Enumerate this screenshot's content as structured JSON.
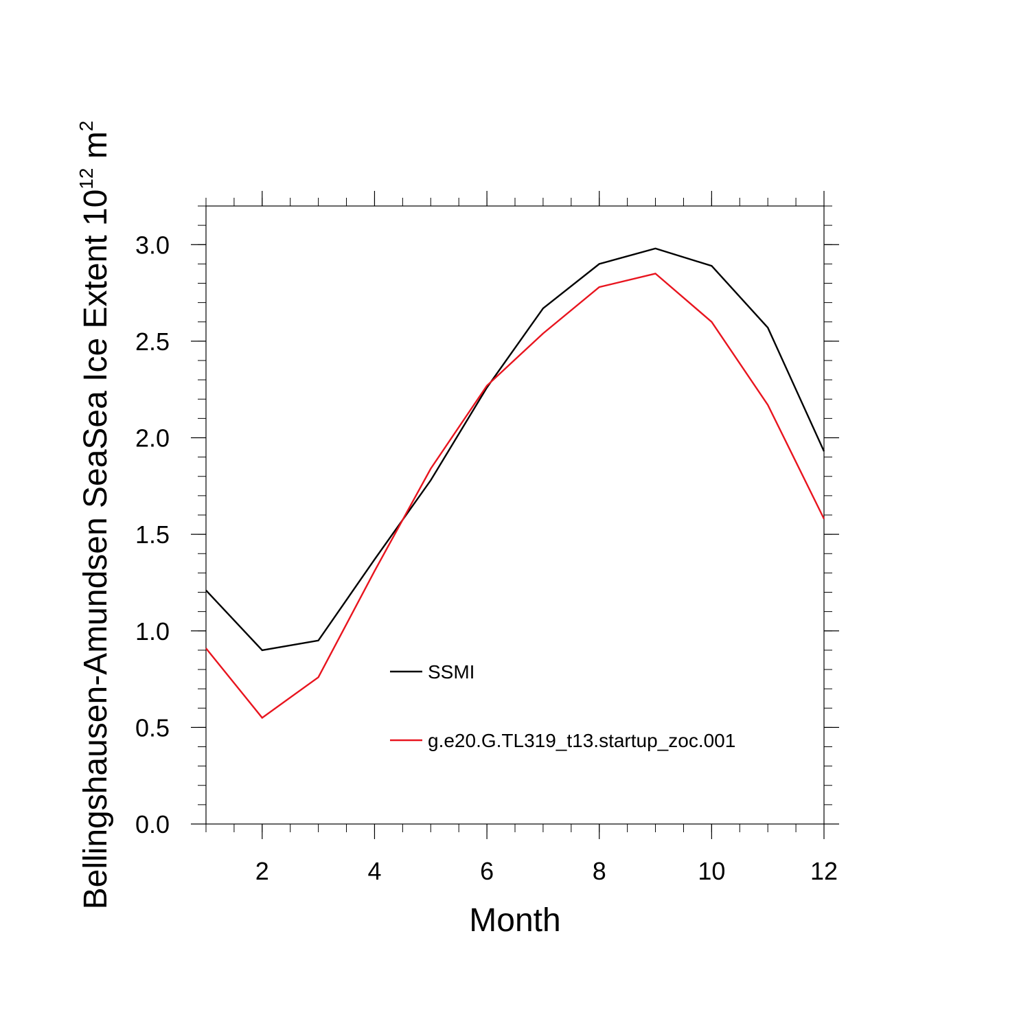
{
  "chart_data": {
    "type": "line",
    "title": "",
    "xlabel": "Month",
    "ylabel": {
      "base": "Bellingshausen-Amundsen SeaSea Ice Extent 10",
      "exponent": "12",
      "unit": " m",
      "unit_exponent": "2"
    },
    "xlim": [
      1,
      12
    ],
    "ylim": [
      0,
      3.2
    ],
    "x_ticks": [
      2,
      4,
      6,
      8,
      10,
      12
    ],
    "x_tick_labels": [
      "2",
      "4",
      "6",
      "8",
      "10",
      "12"
    ],
    "y_ticks": [
      0,
      0.5,
      1,
      1.5,
      2,
      2.5,
      3
    ],
    "y_tick_labels": [
      "0.0",
      "0.5",
      "1.0",
      "1.5",
      "2.0",
      "2.5",
      "3.0"
    ],
    "x": [
      1,
      2,
      3,
      4,
      5,
      6,
      7,
      8,
      9,
      10,
      11,
      12
    ],
    "series": [
      {
        "name": "SSMI",
        "color": "#000000",
        "values": [
          1.21,
          0.9,
          0.95,
          1.37,
          1.78,
          2.26,
          2.67,
          2.9,
          2.98,
          2.89,
          2.57,
          1.93
        ]
      },
      {
        "name": "g.e20.G.TL319_t13.startup_zoc.001",
        "color": "#e8141e",
        "values": [
          0.91,
          0.55,
          0.76,
          1.31,
          1.84,
          2.27,
          2.54,
          2.78,
          2.85,
          2.6,
          2.17,
          1.58
        ]
      }
    ],
    "legend_position": "center"
  }
}
